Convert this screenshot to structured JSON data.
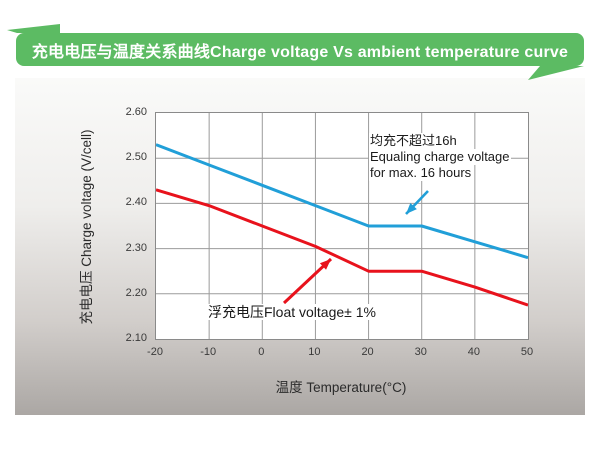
{
  "banner": {
    "title": "充电电压与温度关系曲线Charge voltage Vs ambient temperature curve",
    "bg_color": "#5cbb63"
  },
  "chart_data": {
    "type": "line",
    "title": "充电电压与温度关系曲线Charge voltage Vs ambient temperature curve",
    "x": [
      -20,
      -10,
      0,
      10,
      20,
      30,
      40,
      50
    ],
    "x_tick_labels": [
      "-20",
      "-10",
      "0",
      "10",
      "20",
      "30",
      "40",
      "50"
    ],
    "y_ticks": [
      2.1,
      2.2,
      2.3,
      2.4,
      2.5,
      2.6
    ],
    "y_tick_labels": [
      "2.10",
      "2.20",
      "2.30",
      "2.40",
      "2.50",
      "2.60"
    ],
    "xlabel": "温度 Temperature(°C)",
    "ylabel": "充电电压 Charge voltage (V/cell)",
    "xlim": [
      -20,
      50
    ],
    "ylim": [
      2.1,
      2.6
    ],
    "grid": true,
    "legend_position": "none",
    "series": [
      {
        "name": "Equalizing charge voltage",
        "color": "#219fd8",
        "values": [
          2.53,
          2.485,
          2.44,
          2.395,
          2.35,
          2.35,
          2.315,
          2.28
        ]
      },
      {
        "name": "Float voltage",
        "color": "#e8121c",
        "values": [
          2.43,
          2.395,
          2.35,
          2.305,
          2.25,
          2.25,
          2.215,
          2.175
        ]
      }
    ],
    "annotations": [
      {
        "id": "equalize",
        "lines": [
          "均充不超过16h",
          "Equaling charge voltage",
          "for max. 16 hours"
        ],
        "arrow_color": "#219fd8"
      },
      {
        "id": "float",
        "lines": [
          "浮充电压Float voltage± 1%"
        ],
        "arrow_color": "#e8121c"
      }
    ],
    "colors": {
      "grid": "#9b9b9b",
      "plot_border": "#8a8a8a",
      "banner_green": "#5cbb63"
    }
  }
}
